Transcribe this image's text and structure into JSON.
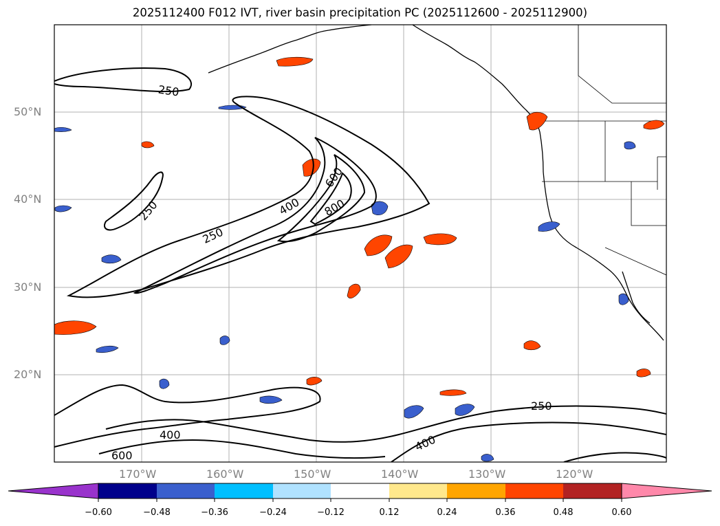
{
  "title": "2025112400 F012 IVT, river basin precipitation PC (2025112600 - 2025112900)",
  "map": {
    "lat_labels": [
      "50°N",
      "40°N",
      "30°N",
      "20°N"
    ],
    "lon_labels": [
      "170°W",
      "160°W",
      "150°W",
      "140°W",
      "130°W",
      "120°W"
    ],
    "contour_labels": [
      "250",
      "250",
      "250",
      "400",
      "600",
      "800",
      "250",
      "400",
      "600",
      "400"
    ]
  },
  "colorbar": {
    "colors": [
      "#9933cc",
      "#00008b",
      "#3a5fcd",
      "#00bfff",
      "#b0e2ff",
      "#ffffff",
      "#ffe88c",
      "#ffa500",
      "#ff4500",
      "#b22222",
      "#ff88aa"
    ],
    "tick_labels": [
      "−0.60",
      "−0.48",
      "−0.36",
      "−0.24",
      "−0.12",
      "0.12",
      "0.24",
      "0.36",
      "0.48",
      "0.60"
    ]
  }
}
